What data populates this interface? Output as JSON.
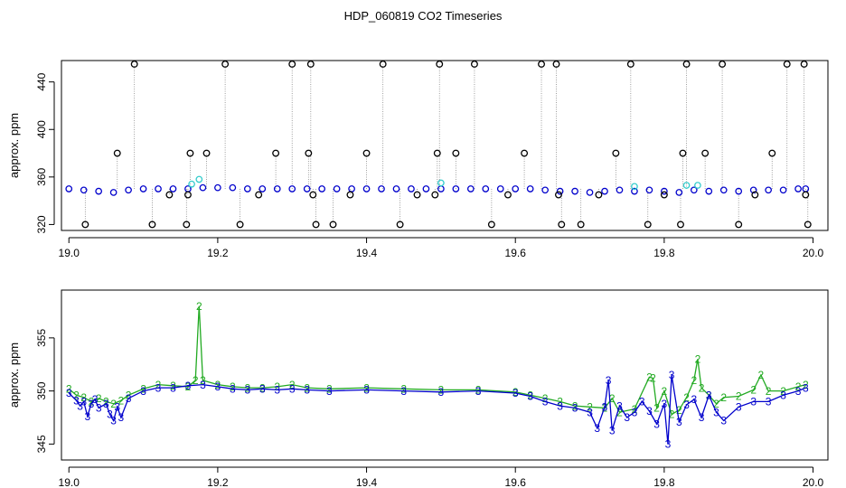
{
  "figure": {
    "title": "HDP_060819  CO2 Timeseries"
  },
  "chart_data": [
    {
      "type": "scatter",
      "title": "HDP_060819  CO2 Timeseries",
      "xlabel": "",
      "ylabel": "approx. ppm",
      "xlim": [
        18.99,
        20.02
      ],
      "ylim": [
        315,
        458
      ],
      "x_ticks": [
        19.0,
        19.2,
        19.4,
        19.6,
        19.8,
        20.0
      ],
      "x_tick_labels": [
        "19.0",
        "19.2",
        "19.4",
        "19.6",
        "19.8",
        "20.0"
      ],
      "y_ticks": [
        320,
        360,
        400,
        440
      ],
      "y_tick_labels": [
        "320",
        "360",
        "400",
        "440"
      ],
      "grid": false,
      "colors": {
        "blue": "#0000cc",
        "cyan": "#33cccc",
        "black": "#000000",
        "line": "#888888"
      },
      "series": [
        {
          "x": [
            19.0,
            19.02,
            19.04,
            19.06,
            19.08,
            19.1,
            19.12,
            19.14,
            19.16,
            19.18,
            19.2,
            19.22,
            19.24,
            19.26,
            19.28,
            19.3,
            19.32,
            19.34,
            19.36,
            19.38,
            19.4,
            19.42,
            19.44,
            19.46,
            19.48,
            19.5,
            19.52,
            19.54,
            19.56,
            19.58,
            19.6,
            19.62,
            19.64,
            19.66,
            19.68,
            19.7,
            19.72,
            19.74,
            19.76,
            19.78,
            19.8,
            19.82,
            19.84,
            19.86,
            19.88,
            19.9,
            19.92,
            19.94,
            19.96,
            19.98,
            19.99
          ],
          "values": [
            350,
            349,
            348,
            347,
            349,
            350,
            350,
            350,
            350,
            351,
            351,
            351,
            350,
            350,
            350,
            350,
            350,
            350,
            350,
            350,
            350,
            350,
            350,
            350,
            350,
            350,
            350,
            350,
            350,
            350,
            350,
            350,
            349,
            348,
            348,
            347,
            348,
            349,
            348,
            349,
            348,
            347,
            349,
            348,
            349,
            348,
            349,
            349,
            349,
            350,
            350
          ]
        },
        {
          "x": [
            19.165,
            19.175,
            19.5,
            19.76,
            19.83,
            19.845
          ],
          "values": [
            354,
            358,
            355,
            352,
            353,
            353
          ]
        },
        {
          "x": [
            19.022,
            19.065,
            19.088,
            19.112,
            19.135,
            19.158,
            19.16,
            19.163,
            19.185,
            19.21,
            19.23,
            19.255,
            19.278,
            19.3,
            19.322,
            19.325,
            19.328,
            19.332,
            19.355,
            19.378,
            19.4,
            19.422,
            19.445,
            19.468,
            19.492,
            19.495,
            19.498,
            19.52,
            19.545,
            19.568,
            19.59,
            19.612,
            19.635,
            19.655,
            19.658,
            19.662,
            19.688,
            19.712,
            19.735,
            19.755,
            19.778,
            19.8,
            19.822,
            19.825,
            19.83,
            19.855,
            19.878,
            19.9,
            19.922,
            19.945,
            19.965,
            19.988,
            19.99,
            19.993
          ],
          "values": [
            320,
            380,
            455,
            320,
            345,
            320,
            345,
            380,
            380,
            455,
            320,
            345,
            380,
            455,
            380,
            455,
            345,
            320,
            320,
            345,
            380,
            455,
            320,
            345,
            345,
            380,
            455,
            380,
            455,
            320,
            345,
            380,
            455,
            455,
            345,
            320,
            320,
            345,
            380,
            455,
            320,
            345,
            320,
            380,
            455,
            380,
            455,
            320,
            345,
            380,
            455,
            455,
            345,
            320
          ]
        }
      ]
    },
    {
      "type": "line",
      "xlabel": "",
      "ylabel": "approx. ppm",
      "xlim": [
        18.99,
        20.02
      ],
      "ylim": [
        343.5,
        359.5
      ],
      "x_ticks": [
        19.0,
        19.2,
        19.4,
        19.6,
        19.8,
        20.0
      ],
      "x_tick_labels": [
        "19.0",
        "19.2",
        "19.4",
        "19.6",
        "19.8",
        "20.0"
      ],
      "y_ticks": [
        345,
        350,
        355
      ],
      "y_tick_labels": [
        "345",
        "350",
        "355"
      ],
      "grid": false,
      "colors": {
        "green": "#22aa22",
        "blue": "#0000cc"
      },
      "series": [
        {
          "marker_label": "2",
          "x": [
            19.0,
            19.01,
            19.02,
            19.03,
            19.04,
            19.05,
            19.06,
            19.07,
            19.08,
            19.1,
            19.12,
            19.14,
            19.16,
            19.17,
            19.175,
            19.18,
            19.2,
            19.22,
            19.24,
            19.26,
            19.28,
            19.3,
            19.32,
            19.35,
            19.4,
            19.45,
            19.5,
            19.55,
            19.6,
            19.62,
            19.64,
            19.66,
            19.68,
            19.7,
            19.72,
            19.73,
            19.74,
            19.76,
            19.78,
            19.785,
            19.79,
            19.8,
            19.81,
            19.82,
            19.83,
            19.84,
            19.845,
            19.85,
            19.86,
            19.87,
            19.88,
            19.9,
            19.92,
            19.93,
            19.94,
            19.96,
            19.98,
            19.99
          ],
          "values": [
            350.2,
            349.6,
            349.4,
            349.0,
            349.3,
            349.0,
            348.8,
            349.1,
            349.6,
            350.2,
            350.6,
            350.5,
            350.4,
            351.0,
            358.0,
            351.0,
            350.6,
            350.4,
            350.3,
            350.3,
            350.4,
            350.6,
            350.3,
            350.2,
            350.3,
            350.2,
            350.1,
            350.1,
            349.9,
            349.6,
            349.3,
            349.0,
            348.6,
            348.5,
            348.4,
            349.3,
            348.0,
            348.3,
            351.3,
            351.2,
            348.4,
            350.0,
            347.8,
            348.2,
            349.4,
            351.0,
            353.0,
            350.3,
            349.6,
            348.8,
            349.4,
            349.5,
            350.1,
            351.5,
            350.0,
            350.0,
            350.4,
            350.6
          ]
        },
        {
          "marker_label": "3",
          "x": [
            19.0,
            19.01,
            19.015,
            19.02,
            19.025,
            19.03,
            19.035,
            19.04,
            19.05,
            19.055,
            19.06,
            19.065,
            19.07,
            19.08,
            19.1,
            19.12,
            19.14,
            19.16,
            19.18,
            19.2,
            19.22,
            19.24,
            19.26,
            19.28,
            19.3,
            19.32,
            19.35,
            19.4,
            19.45,
            19.5,
            19.55,
            19.6,
            19.62,
            19.64,
            19.66,
            19.68,
            19.7,
            19.71,
            19.72,
            19.725,
            19.73,
            19.74,
            19.75,
            19.76,
            19.77,
            19.78,
            19.79,
            19.8,
            19.805,
            19.81,
            19.82,
            19.83,
            19.84,
            19.85,
            19.86,
            19.87,
            19.88,
            19.9,
            19.92,
            19.94,
            19.96,
            19.98,
            19.99
          ],
          "values": [
            349.8,
            349.1,
            348.6,
            349.0,
            347.6,
            348.8,
            349.2,
            348.4,
            348.8,
            347.8,
            347.2,
            348.5,
            347.5,
            349.3,
            350.0,
            350.3,
            350.3,
            350.5,
            350.6,
            350.4,
            350.2,
            350.1,
            350.2,
            350.1,
            350.2,
            350.1,
            350.0,
            350.1,
            350.0,
            349.9,
            350.0,
            349.8,
            349.5,
            349.0,
            348.6,
            348.4,
            348.0,
            346.5,
            348.5,
            351.0,
            346.3,
            348.6,
            347.5,
            348.0,
            349.0,
            348.1,
            346.9,
            348.8,
            345.0,
            351.5,
            347.1,
            348.7,
            349.2,
            347.5,
            349.6,
            348.0,
            347.2,
            348.5,
            349.0,
            349.0,
            349.6,
            350.0,
            350.3
          ]
        }
      ]
    }
  ]
}
